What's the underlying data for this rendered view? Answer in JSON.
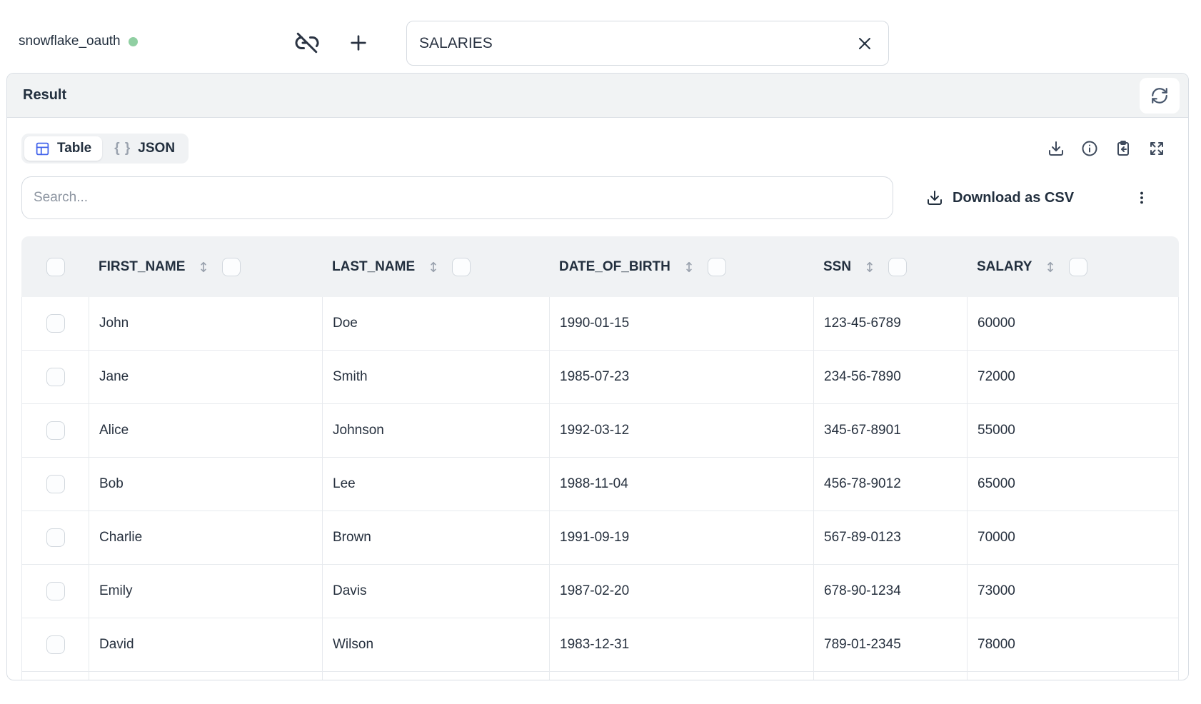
{
  "topbar": {
    "connection_name": "snowflake_oauth",
    "table_name_value": "SALARIES"
  },
  "result_panel": {
    "title": "Result",
    "view_tabs": [
      {
        "label": "Table",
        "active": true
      },
      {
        "label": "JSON",
        "active": false
      }
    ],
    "json_braces_glyph": "{ }",
    "search": {
      "placeholder": "Search...",
      "value": ""
    },
    "download_csv_label": "Download as CSV"
  },
  "table": {
    "columns": [
      "FIRST_NAME",
      "LAST_NAME",
      "DATE_OF_BIRTH",
      "SSN",
      "SALARY"
    ],
    "rows": [
      [
        "John",
        "Doe",
        "1990-01-15",
        "123-45-6789",
        "60000"
      ],
      [
        "Jane",
        "Smith",
        "1985-07-23",
        "234-56-7890",
        "72000"
      ],
      [
        "Alice",
        "Johnson",
        "1992-03-12",
        "345-67-8901",
        "55000"
      ],
      [
        "Bob",
        "Lee",
        "1988-11-04",
        "456-78-9012",
        "65000"
      ],
      [
        "Charlie",
        "Brown",
        "1991-09-19",
        "567-89-0123",
        "70000"
      ],
      [
        "Emily",
        "Davis",
        "1987-02-20",
        "678-90-1234",
        "73000"
      ],
      [
        "David",
        "Wilson",
        "1983-12-31",
        "789-01-2345",
        "78000"
      ]
    ]
  },
  "colors": {
    "accent_blue": "#4263eb",
    "status_green": "#90cfa2",
    "text_dark": "#222f3e",
    "panel_gray": "#f1f3f4",
    "border_gray": "#d9dee4"
  }
}
